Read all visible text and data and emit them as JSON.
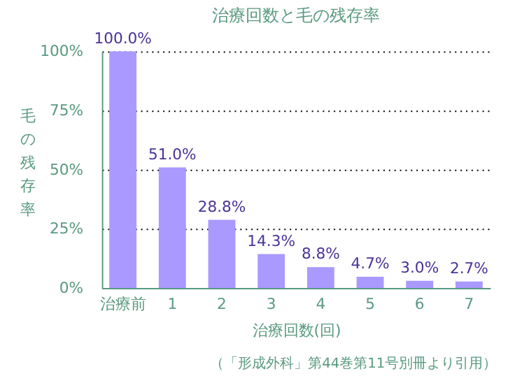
{
  "chart_data": {
    "type": "bar",
    "title": "治療回数と毛の残存率",
    "xlabel": "治療回数(回)",
    "ylabel": "毛の残存率",
    "categories": [
      "治療前",
      "1",
      "2",
      "3",
      "4",
      "5",
      "6",
      "7"
    ],
    "values": [
      100.0,
      51.0,
      28.8,
      14.3,
      8.8,
      4.7,
      3.0,
      2.7
    ],
    "value_labels": [
      "100.0%",
      "51.0%",
      "28.8%",
      "14.3%",
      "8.8%",
      "4.7%",
      "3.0%",
      "2.7%"
    ],
    "color": "#aa99ff",
    "ylim": [
      0,
      100
    ],
    "yticks": [
      {
        "value": 0,
        "label": "0%"
      },
      {
        "value": 25,
        "label": "25%"
      },
      {
        "value": 50,
        "label": "50%"
      },
      {
        "value": 75,
        "label": "75%"
      },
      {
        "value": 100,
        "label": "100%"
      }
    ],
    "grid": "y",
    "line_style": "dotted",
    "annotations": [
      "（「形成外科」第44巻第11号別冊より引用）"
    ]
  }
}
